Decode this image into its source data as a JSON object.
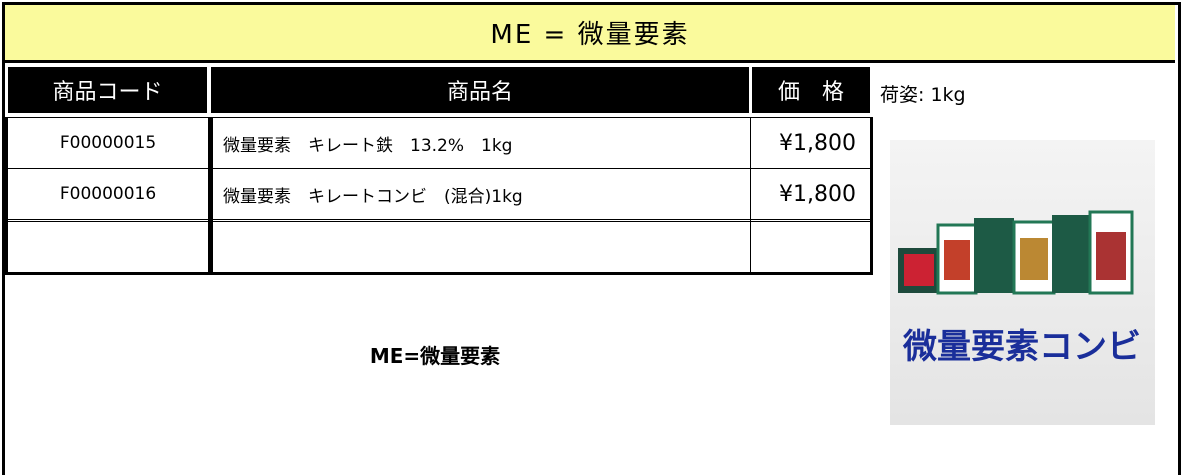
{
  "title": "ME = 微量要素",
  "table": {
    "headers": [
      "商品コード",
      "商品名",
      "価　格"
    ],
    "rows": [
      [
        "F00000015",
        "微量要素　キレート鉄　13.2%　1kg",
        "¥1,800"
      ],
      [
        "F00000016",
        "微量要素　キレートコンビ　(混合)1kg",
        "¥1,800"
      ]
    ]
  },
  "packing": "荷姿: 1kg",
  "note": "ME=微量要素",
  "image": {
    "label": "微量要素コンビ"
  }
}
